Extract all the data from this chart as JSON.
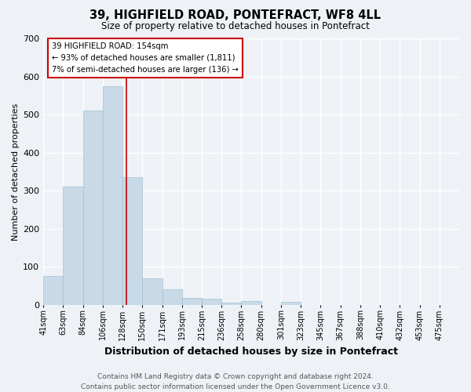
{
  "title": "39, HIGHFIELD ROAD, PONTEFRACT, WF8 4LL",
  "subtitle": "Size of property relative to detached houses in Pontefract",
  "xlabel": "Distribution of detached houses by size in Pontefract",
  "ylabel": "Number of detached properties",
  "bin_labels": [
    "41sqm",
    "63sqm",
    "84sqm",
    "106sqm",
    "128sqm",
    "150sqm",
    "171sqm",
    "193sqm",
    "215sqm",
    "236sqm",
    "258sqm",
    "280sqm",
    "301sqm",
    "323sqm",
    "345sqm",
    "367sqm",
    "388sqm",
    "410sqm",
    "432sqm",
    "453sqm",
    "475sqm"
  ],
  "bar_heights": [
    75,
    310,
    510,
    575,
    335,
    70,
    40,
    18,
    15,
    5,
    10,
    0,
    8,
    0,
    0,
    0,
    0,
    0,
    0,
    0,
    0
  ],
  "bar_color": "#c8d9e8",
  "bar_edge_color": "#a8bfd0",
  "property_line_x": 4,
  "bin_edges_idx": [
    0,
    1,
    2,
    3,
    4,
    5,
    6,
    7,
    8,
    9,
    10,
    11,
    12,
    13,
    14,
    15,
    16,
    17,
    18,
    19,
    20
  ],
  "ylim": [
    0,
    700
  ],
  "yticks": [
    0,
    100,
    200,
    300,
    400,
    500,
    600,
    700
  ],
  "annotation_line1": "39 HIGHFIELD ROAD: 154sqm",
  "annotation_line2": "← 93% of detached houses are smaller (1,811)",
  "annotation_line3": "7% of semi-detached houses are larger (136) →",
  "annotation_box_color": "#ffffff",
  "annotation_box_edge": "#cc0000",
  "red_line_color": "#cc0000",
  "footer_line1": "Contains HM Land Registry data © Crown copyright and database right 2024.",
  "footer_line2": "Contains public sector information licensed under the Open Government Licence v3.0.",
  "background_color": "#eef2f7",
  "grid_color": "#ffffff",
  "title_fontsize": 10.5,
  "subtitle_fontsize": 8.5,
  "xlabel_fontsize": 9,
  "ylabel_fontsize": 8,
  "tick_fontsize": 7,
  "footer_fontsize": 6.5
}
